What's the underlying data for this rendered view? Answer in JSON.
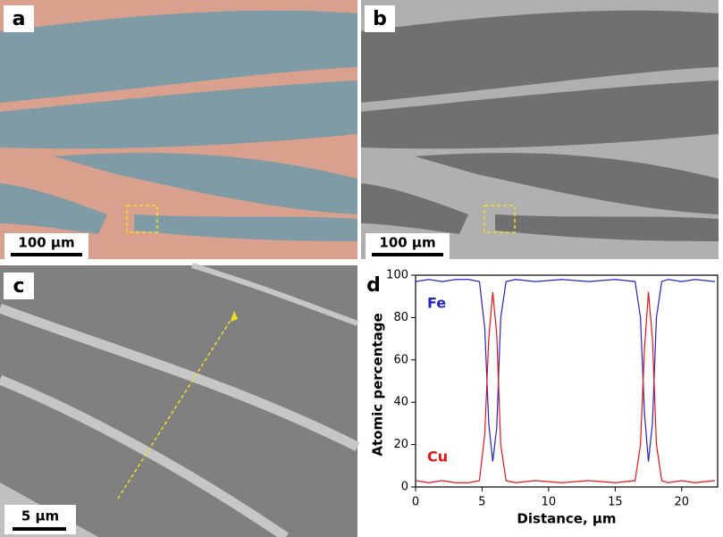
{
  "panels": [
    {
      "label": "a",
      "scale_bar": "100 μm"
    },
    {
      "label": "b",
      "scale_bar": "100 μm"
    },
    {
      "label": "c",
      "scale_bar": "5 μm"
    },
    {
      "label": "d"
    }
  ],
  "chart_data": {
    "type": "line",
    "xlabel": "Distance, μm",
    "ylabel": "Atomic percentage",
    "x": [
      0,
      1,
      2,
      3,
      4,
      4.8,
      5.2,
      5.5,
      5.8,
      6.1,
      6.4,
      6.8,
      7.5,
      9,
      11,
      13,
      15,
      16.5,
      16.9,
      17.2,
      17.5,
      17.8,
      18.1,
      18.5,
      19,
      20,
      21,
      22.5
    ],
    "series": [
      {
        "name": "Fe",
        "color": "#2222cc",
        "values": [
          97,
          98,
          97,
          98,
          98,
          97,
          75,
          30,
          12,
          28,
          80,
          97,
          98,
          97,
          98,
          97,
          98,
          97,
          80,
          35,
          12,
          30,
          80,
          97,
          98,
          97,
          98,
          97
        ]
      },
      {
        "name": "Cu",
        "color": "#ee1111",
        "values": [
          3,
          2,
          3,
          2,
          2,
          3,
          25,
          70,
          92,
          72,
          20,
          3,
          2,
          3,
          2,
          3,
          2,
          3,
          20,
          65,
          92,
          70,
          20,
          3,
          2,
          3,
          2,
          3
        ]
      }
    ],
    "xlim": [
      0,
      22.7
    ],
    "xticks": [
      0,
      5,
      10,
      15,
      20
    ],
    "ylim": [
      0,
      100
    ],
    "yticks": [
      0,
      20,
      40,
      60,
      80,
      100
    ]
  }
}
